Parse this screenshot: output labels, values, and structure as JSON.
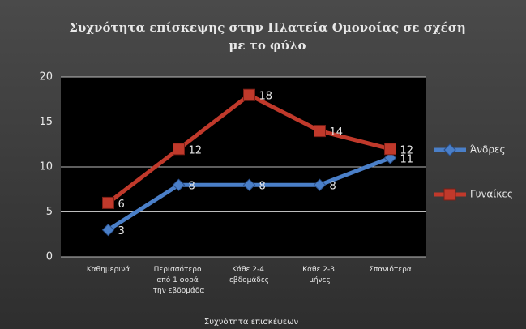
{
  "chart_data": {
    "type": "line",
    "title": [
      "Συχνότητα επίσκεψης στην Πλατεία  Ομονοίας σε σχέση",
      "με το φύλο"
    ],
    "x_label": "Συχνότητα επισκέψεων",
    "categories": [
      "Καθημερινά",
      "Περισσότερο από 1 φορά την εβδομάδα",
      "Κάθε 2-4 εβδομάδες",
      "Κάθε 2-3 μήνες",
      "Σπανιότερα"
    ],
    "series": [
      {
        "name": "Άνδρες",
        "color": "#4a7fc8",
        "marker": "diamond",
        "values": [
          3,
          8,
          8,
          8,
          11
        ]
      },
      {
        "name": "Γυναίκες",
        "color": "#c0392b",
        "marker": "square",
        "values": [
          6,
          12,
          18,
          14,
          12
        ]
      }
    ],
    "ylim": [
      0,
      20
    ],
    "yticks": [
      0,
      5,
      10,
      15,
      20
    ],
    "grid": true,
    "legend": "right",
    "data_labels": true
  }
}
